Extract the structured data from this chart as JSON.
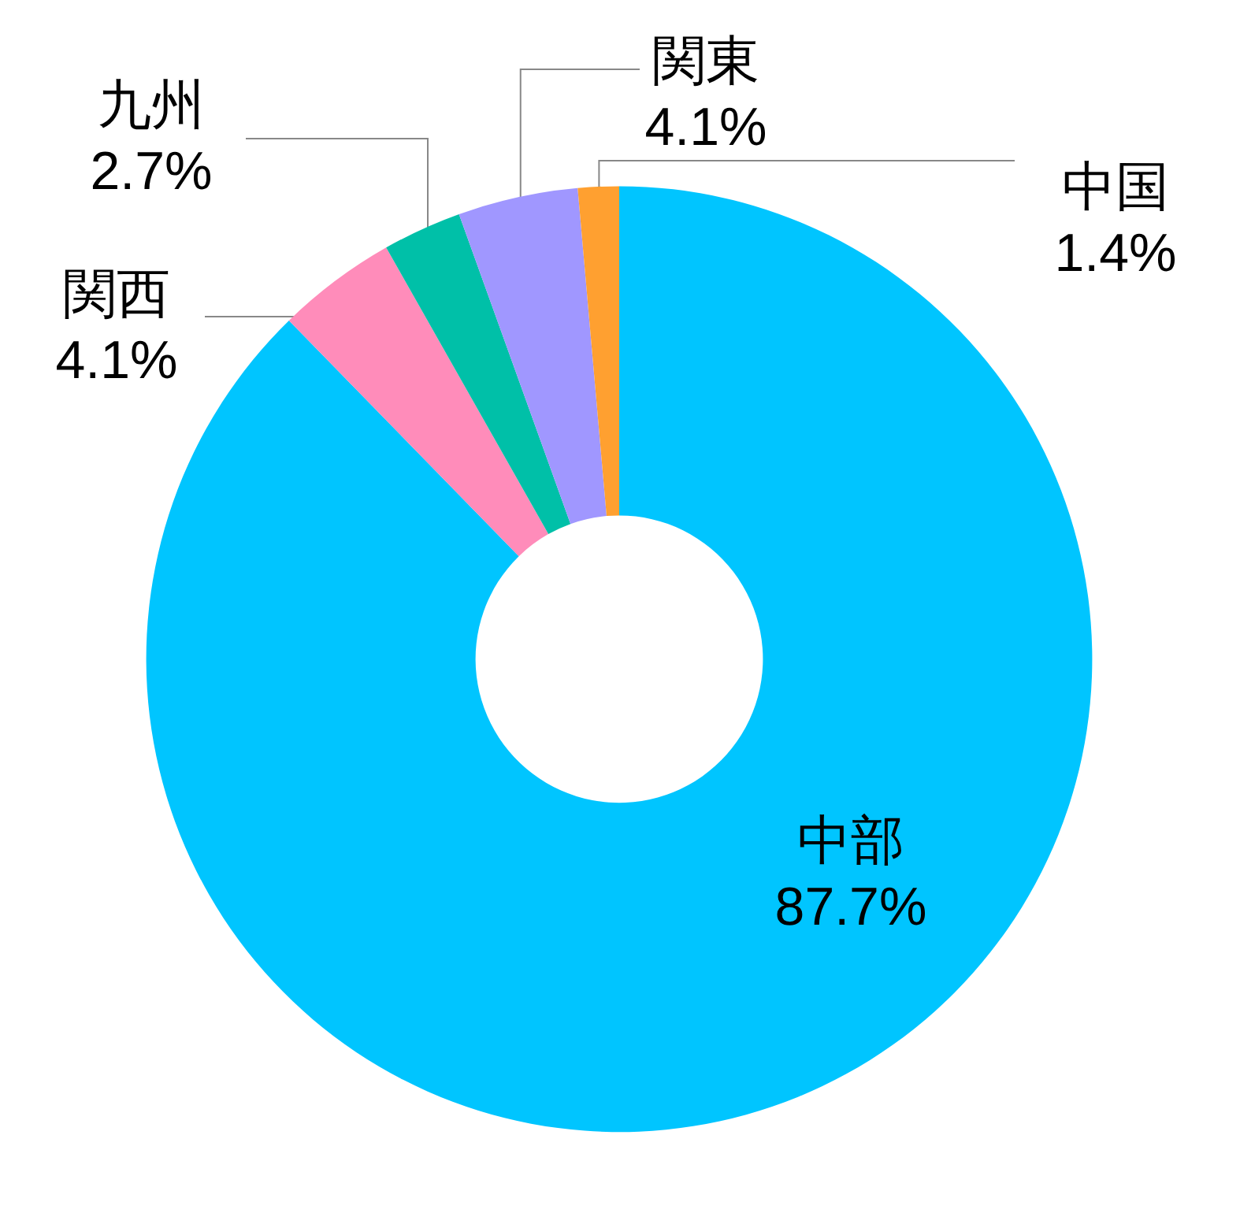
{
  "chart_data": {
    "type": "donut",
    "categories": [
      "中部",
      "関西",
      "九州",
      "関東",
      "中国"
    ],
    "values": [
      87.7,
      4.1,
      2.7,
      4.1,
      1.4
    ],
    "value_labels": [
      "87.7%",
      "4.1%",
      "2.7%",
      "4.1%",
      "1.4%"
    ],
    "colors": [
      "#00c5ff",
      "#ff8cba",
      "#00c0a8",
      "#a097ff",
      "#ffa030"
    ],
    "data_labels": true,
    "legend": false
  }
}
